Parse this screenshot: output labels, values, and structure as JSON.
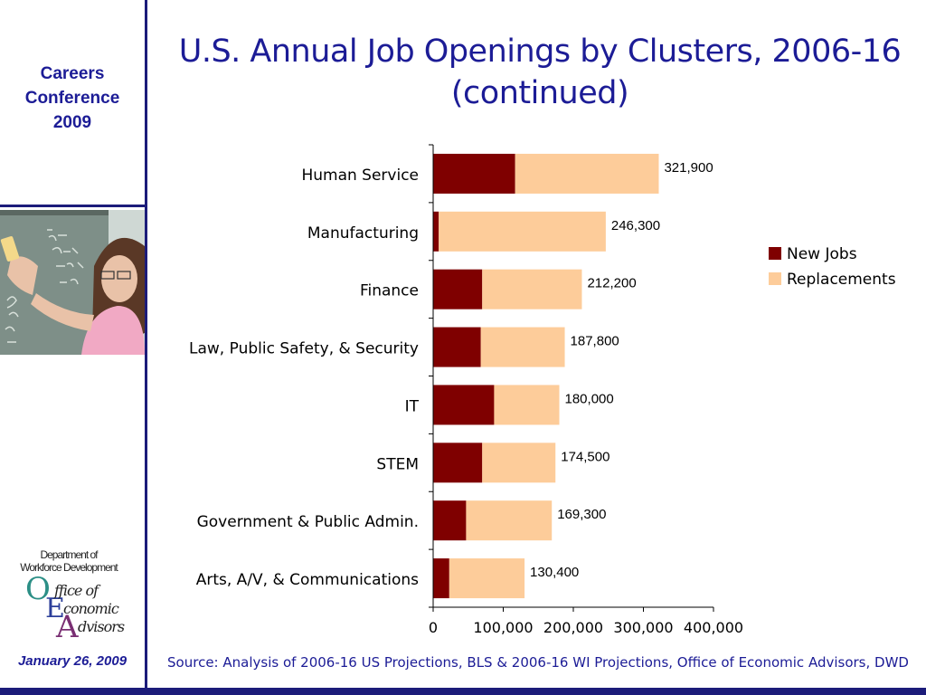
{
  "sidebar": {
    "conference_lines": [
      "Careers",
      "Conference",
      "2009"
    ],
    "logo": {
      "line1": "Department of",
      "line2": "Workforce Development",
      "word1": "ffice of",
      "word2": "conomic",
      "word3": "dvisors",
      "initial_o": "O",
      "initial_e": "E",
      "initial_a": "A"
    },
    "date": "January 26, 2009"
  },
  "slide": {
    "title_line1": "U.S. Annual Job Openings by Clusters, 2006-16",
    "title_line2": "(continued)",
    "source": "Source: Analysis of 2006-16 US Projections, BLS & 2006-16 WI Projections, Office of Economic Advisors, DWD"
  },
  "colors": {
    "brand_navy": "#1c1c96",
    "new_jobs": "#7f0000",
    "replacements": "#fdcc9a"
  },
  "chart_data": {
    "type": "bar",
    "orientation": "horizontal",
    "stacked": true,
    "title": "U.S. Annual Job Openings by Clusters, 2006-16 (continued)",
    "categories": [
      "Human Service",
      "Manufacturing",
      "Finance",
      "Law, Public Safety, & Security",
      "IT",
      "STEM",
      "Government & Public Admin.",
      "Arts, A/V, & Communications"
    ],
    "series": [
      {
        "name": "New Jobs",
        "color": "#7f0000",
        "values": [
          117000,
          8000,
          70000,
          68000,
          87000,
          70000,
          47000,
          23000
        ]
      },
      {
        "name": "Replacements",
        "color": "#fdcc9a",
        "values": [
          204900,
          238300,
          142200,
          119800,
          93000,
          104500,
          122300,
          107400
        ]
      }
    ],
    "totals": [
      321900,
      246300,
      212200,
      187800,
      180000,
      174500,
      169300,
      130400
    ],
    "total_labels": [
      "321,900",
      "246,300",
      "212,200",
      "187,800",
      "180,000",
      "174,500",
      "169,300",
      "130,400"
    ],
    "xlim": [
      0,
      400000
    ],
    "xticks": [
      0,
      100000,
      200000,
      300000,
      400000
    ],
    "xtick_labels": [
      "0",
      "100,000",
      "200,000",
      "300,000",
      "400,000"
    ],
    "legend_position": "right",
    "grid": false
  }
}
